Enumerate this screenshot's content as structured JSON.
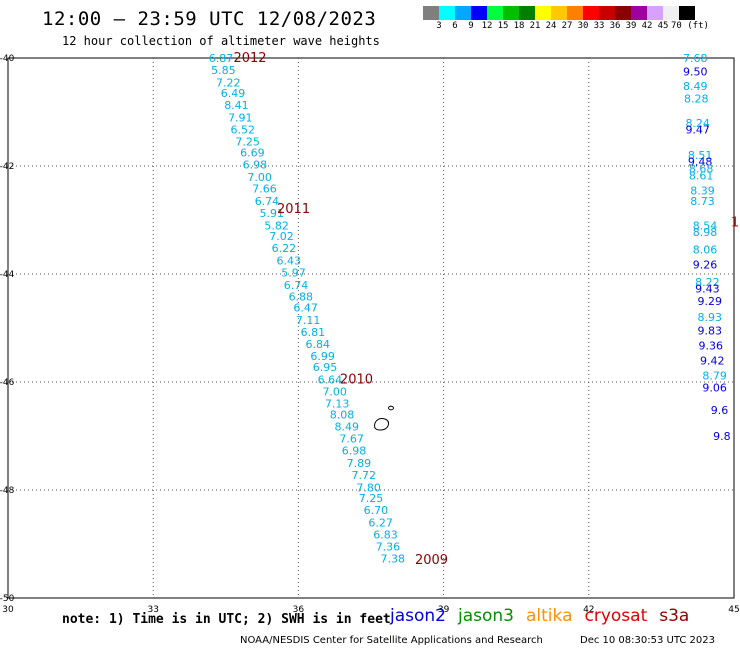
{
  "title": "12:00 – 23:59 UTC 12/08/2023",
  "subtitle": "12 hour collection of altimeter wave heights",
  "legend": {
    "labels": [
      "3",
      "6",
      "9",
      "12",
      "15",
      "18",
      "21",
      "24",
      "27",
      "30",
      "33",
      "36",
      "39",
      "42",
      "45",
      "70 (ft)"
    ],
    "colors": [
      "#7f7f7f",
      "#00ffff",
      "#00a8ff",
      "#0000ff",
      "#00ff40",
      "#00c000",
      "#008000",
      "#ffff00",
      "#ffc800",
      "#ff8000",
      "#ff0000",
      "#c80000",
      "#8b0000",
      "#a000a0",
      "#d8a0ff",
      "#f0f0f0",
      "#000000"
    ]
  },
  "map": {
    "lon_min": 30,
    "lon_max": 45,
    "lat_min": -50,
    "lat_max": -40,
    "lon_ticks": [
      "30",
      "33",
      "36",
      "39",
      "42",
      "45"
    ],
    "lat_ticks": [
      "-40",
      "-42",
      "-44",
      "-46",
      "-48",
      "-50"
    ]
  },
  "track1": {
    "color": "#00b0e8",
    "points": [
      {
        "v": "6.87",
        "lon": 34.4,
        "lat": -40.0
      },
      {
        "v": "5.85",
        "lon": 34.45,
        "lat": -40.22
      },
      {
        "v": "7.22",
        "lon": 34.55,
        "lat": -40.45
      },
      {
        "v": "6.49",
        "lon": 34.65,
        "lat": -40.65
      },
      {
        "v": "8.41",
        "lon": 34.72,
        "lat": -40.87
      },
      {
        "v": "7.91",
        "lon": 34.8,
        "lat": -41.1
      },
      {
        "v": "6.52",
        "lon": 34.85,
        "lat": -41.32
      },
      {
        "v": "7.25",
        "lon": 34.95,
        "lat": -41.55
      },
      {
        "v": "6.69",
        "lon": 35.05,
        "lat": -41.75
      },
      {
        "v": "6.98",
        "lon": 35.1,
        "lat": -41.97
      },
      {
        "v": "7.00",
        "lon": 35.2,
        "lat": -42.2
      },
      {
        "v": "7.66",
        "lon": 35.3,
        "lat": -42.42
      },
      {
        "v": "6.74",
        "lon": 35.35,
        "lat": -42.65
      },
      {
        "v": "5.91",
        "lon": 35.45,
        "lat": -42.87
      },
      {
        "v": "5.82",
        "lon": 35.55,
        "lat": -43.1
      },
      {
        "v": "7.02",
        "lon": 35.65,
        "lat": -43.3
      },
      {
        "v": "6.22",
        "lon": 35.7,
        "lat": -43.52
      },
      {
        "v": "6.43",
        "lon": 35.8,
        "lat": -43.75
      },
      {
        "v": "5.97",
        "lon": 35.9,
        "lat": -43.97
      },
      {
        "v": "6.74",
        "lon": 35.95,
        "lat": -44.2
      },
      {
        "v": "6.88",
        "lon": 36.05,
        "lat": -44.42
      },
      {
        "v": "6.47",
        "lon": 36.15,
        "lat": -44.62
      },
      {
        "v": "7.11",
        "lon": 36.2,
        "lat": -44.85
      },
      {
        "v": "6.81",
        "lon": 36.3,
        "lat": -45.07
      },
      {
        "v": "6.84",
        "lon": 36.4,
        "lat": -45.3
      },
      {
        "v": "6.99",
        "lon": 36.5,
        "lat": -45.52
      },
      {
        "v": "6.95",
        "lon": 36.55,
        "lat": -45.72
      },
      {
        "v": "6.64",
        "lon": 36.65,
        "lat": -45.95
      },
      {
        "v": "7.00",
        "lon": 36.75,
        "lat": -46.18
      },
      {
        "v": "7.13",
        "lon": 36.8,
        "lat": -46.4
      },
      {
        "v": "8.08",
        "lon": 36.9,
        "lat": -46.6
      },
      {
        "v": "8.49",
        "lon": 37.0,
        "lat": -46.82
      },
      {
        "v": "7.67",
        "lon": 37.1,
        "lat": -47.05
      },
      {
        "v": "6.98",
        "lon": 37.15,
        "lat": -47.27
      },
      {
        "v": "7.89",
        "lon": 37.25,
        "lat": -47.5
      },
      {
        "v": "7.72",
        "lon": 37.35,
        "lat": -47.72
      },
      {
        "v": "7.80",
        "lon": 37.45,
        "lat": -47.95
      },
      {
        "v": "7.25",
        "lon": 37.5,
        "lat": -48.15
      },
      {
        "v": "6.70",
        "lon": 37.6,
        "lat": -48.37
      },
      {
        "v": "6.27",
        "lon": 37.7,
        "lat": -48.6
      },
      {
        "v": "6.83",
        "lon": 37.8,
        "lat": -48.82
      },
      {
        "v": "7.36",
        "lon": 37.85,
        "lat": -49.05
      },
      {
        "v": "7.38",
        "lon": 37.95,
        "lat": -49.27
      }
    ],
    "times": [
      {
        "t": "2012",
        "lon": 35.0,
        "lat": -40.0
      },
      {
        "t": "2011",
        "lon": 35.9,
        "lat": -42.8
      },
      {
        "t": "2010",
        "lon": 37.2,
        "lat": -45.95
      },
      {
        "t": "2009",
        "lon": 38.75,
        "lat": -49.3
      }
    ]
  },
  "track2": {
    "points": [
      {
        "v": "7.68",
        "lon": 44.2,
        "lat": -40.0,
        "c": "#00b0e8"
      },
      {
        "v": "9.50",
        "lon": 44.2,
        "lat": -40.25,
        "c": "#0000e0"
      },
      {
        "v": "8.49",
        "lon": 44.2,
        "lat": -40.52,
        "c": "#00b0e8"
      },
      {
        "v": "8.28",
        "lon": 44.22,
        "lat": -40.75,
        "c": "#00b0e8"
      },
      {
        "v": "8.24",
        "lon": 44.25,
        "lat": -41.2,
        "c": "#00b0e8"
      },
      {
        "v": "9.47",
        "lon": 44.25,
        "lat": -41.32,
        "c": "#0000e0"
      },
      {
        "v": "8.51",
        "lon": 44.3,
        "lat": -41.8,
        "c": "#00b0e8"
      },
      {
        "v": "9.48",
        "lon": 44.3,
        "lat": -41.92,
        "c": "#0000e0"
      },
      {
        "v": "8.68",
        "lon": 44.32,
        "lat": -42.05,
        "c": "#00b0e8"
      },
      {
        "v": "8.61",
        "lon": 44.32,
        "lat": -42.18,
        "c": "#00b0e8"
      },
      {
        "v": "8.39",
        "lon": 44.35,
        "lat": -42.45,
        "c": "#00b0e8"
      },
      {
        "v": "8.73",
        "lon": 44.35,
        "lat": -42.65,
        "c": "#00b0e8"
      },
      {
        "v": "8.54",
        "lon": 44.4,
        "lat": -43.1,
        "c": "#00b0e8"
      },
      {
        "v": "8.98",
        "lon": 44.4,
        "lat": -43.22,
        "c": "#00b0e8"
      },
      {
        "v": "8.06",
        "lon": 44.4,
        "lat": -43.55,
        "c": "#00b0e8"
      },
      {
        "v": "9.26",
        "lon": 44.4,
        "lat": -43.82,
        "c": "#0000e0"
      },
      {
        "v": "8.22",
        "lon": 44.45,
        "lat": -44.15,
        "c": "#00b0e8"
      },
      {
        "v": "9.43",
        "lon": 44.45,
        "lat": -44.27,
        "c": "#0000e0"
      },
      {
        "v": "9.29",
        "lon": 44.5,
        "lat": -44.5,
        "c": "#0000e0"
      },
      {
        "v": "8.93",
        "lon": 44.5,
        "lat": -44.8,
        "c": "#00b0e8"
      },
      {
        "v": "9.83",
        "lon": 44.5,
        "lat": -45.05,
        "c": "#0000e0"
      },
      {
        "v": "9.36",
        "lon": 44.52,
        "lat": -45.32,
        "c": "#0000e0"
      },
      {
        "v": "9.42",
        "lon": 44.55,
        "lat": -45.6,
        "c": "#0000e0"
      },
      {
        "v": "8.79",
        "lon": 44.6,
        "lat": -45.88,
        "c": "#00b0e8"
      },
      {
        "v": "9.06",
        "lon": 44.6,
        "lat": -46.1,
        "c": "#0000e0"
      },
      {
        "v": "9.6",
        "lon": 44.7,
        "lat": -46.52,
        "c": "#0000e0"
      },
      {
        "v": "9.8",
        "lon": 44.75,
        "lat": -47.0,
        "c": "#0000e0"
      }
    ],
    "time": {
      "t": "1",
      "lon": 45.02,
      "lat": -43.05
    }
  },
  "note": "note: 1) Time is in UTC; 2) SWH is in feet",
  "satellites": [
    {
      "name": "jason2",
      "color": "#0000e0"
    },
    {
      "name": "jason3",
      "color": "#009000"
    },
    {
      "name": "altika",
      "color": "#ff9000"
    },
    {
      "name": "cryosat",
      "color": "#e00000"
    },
    {
      "name": "s3a",
      "color": "#900000"
    }
  ],
  "credit": "NOAA/NESDIS Center for Satellite Applications and Research",
  "timestamp": "Dec 10 08:30:53 UTC 2023"
}
